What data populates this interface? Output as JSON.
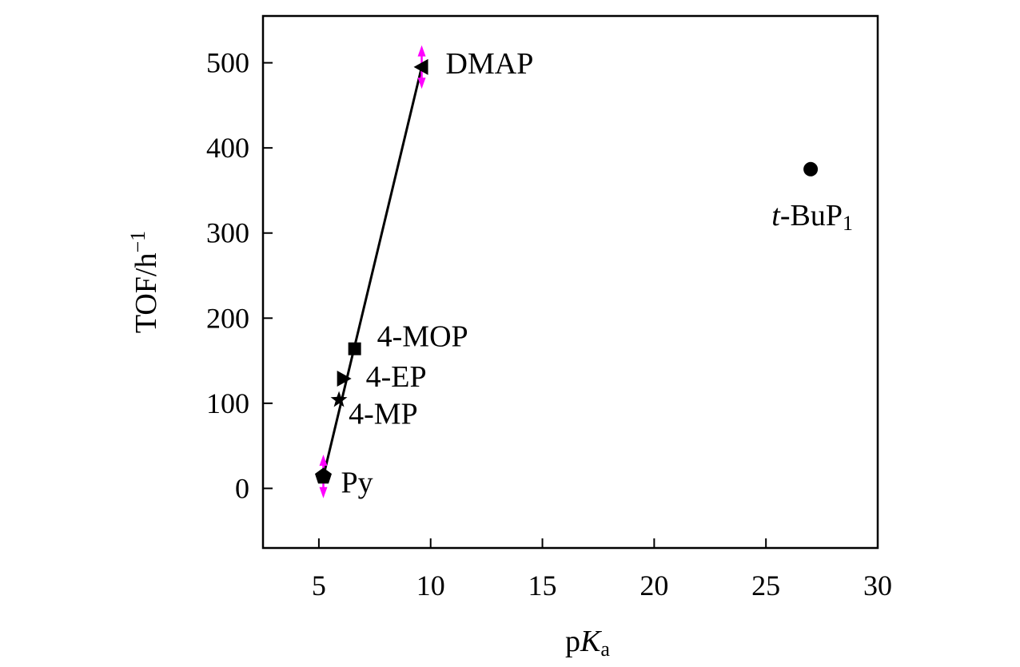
{
  "chart_data": {
    "type": "scatter",
    "title": "",
    "xlabel": {
      "prefix": "p",
      "italic": "K",
      "sub": "a"
    },
    "ylabel": {
      "text": "TOF/h",
      "sup": "−1"
    },
    "xlim": [
      2.5,
      30
    ],
    "ylim": [
      -70,
      555
    ],
    "x_ticks": [
      5,
      10,
      15,
      20,
      25,
      30
    ],
    "y_ticks": [
      0,
      100,
      200,
      300,
      400,
      500
    ],
    "x_tick_labels": [
      "5",
      "10",
      "15",
      "20",
      "25",
      "30"
    ],
    "y_tick_labels": [
      "0",
      "100",
      "200",
      "300",
      "400",
      "500"
    ],
    "grid": false,
    "legend": "none",
    "points": [
      {
        "label": "Py",
        "x": 5.2,
        "y": 14,
        "marker": "pentagon",
        "error": 20
      },
      {
        "label": "4-MP",
        "x": 5.9,
        "y": 104,
        "marker": "star"
      },
      {
        "label": "4-EP",
        "x": 6.1,
        "y": 129,
        "marker": "triangle-right"
      },
      {
        "label": "4-MOP",
        "x": 6.6,
        "y": 164,
        "marker": "square"
      },
      {
        "label": "DMAP",
        "x": 9.6,
        "y": 495,
        "marker": "triangle-left",
        "error": 20
      },
      {
        "label": {
          "italic": "t",
          "rest": "-BuP",
          "sub": "1"
        },
        "x": 27,
        "y": 375,
        "marker": "circle"
      }
    ],
    "fit_line": {
      "x": [
        5.2,
        9.6
      ],
      "y": [
        14,
        495
      ]
    },
    "colors": {
      "points": "#000000",
      "error_bars": "#ff00ff",
      "line": "#000000"
    }
  }
}
